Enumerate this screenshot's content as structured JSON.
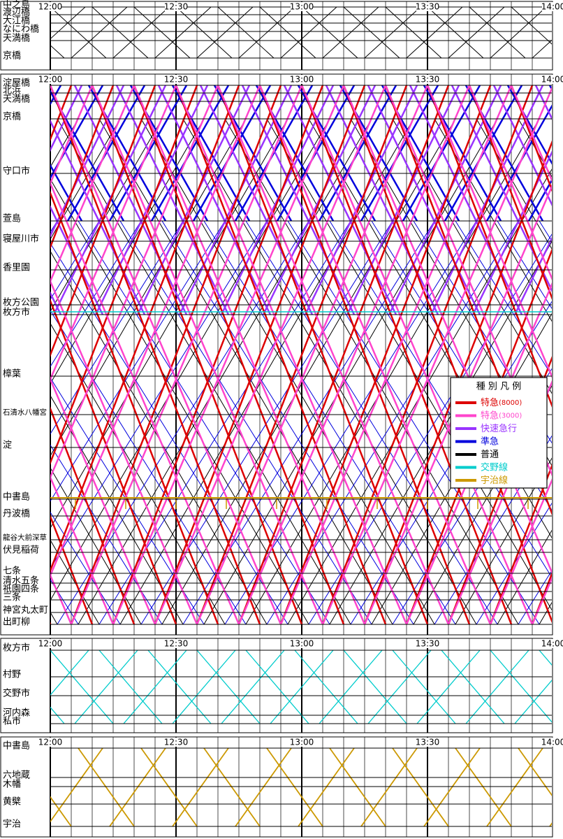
{
  "panels": [
    {
      "time_labels": [
        "12:00",
        "12:30",
        "13:00",
        "13:30",
        "14:00"
      ],
      "stations": [
        "中之島",
        "渡辺橋",
        "大江橋",
        "なにわ橋",
        "天満橋",
        "京橋"
      ]
    },
    {
      "time_labels": [
        "12:00",
        "12:30",
        "13:00",
        "13:30",
        "14:00"
      ],
      "stations": [
        "淀屋橋",
        "北浜",
        "天満橋",
        "京橋",
        "守口市",
        "萱島",
        "寝屋川市",
        "香里園",
        "枚方公園",
        "枚方市",
        "樟葉",
        "石清水八幡宮",
        "淀",
        "中書島",
        "丹波橋",
        "龍谷大前深草",
        "伏見稲荷",
        "七条",
        "清水五条",
        "祇園四条",
        "三条",
        "神宮丸太町",
        "出町柳"
      ]
    },
    {
      "time_labels": [
        "12:00",
        "12:30",
        "13:00",
        "13:30",
        "14:00"
      ],
      "stations": [
        "枚方市",
        "村野",
        "交野市",
        "河内森",
        "私市"
      ]
    },
    {
      "time_labels": [
        "12:00",
        "12:30",
        "13:00",
        "13:30",
        "14:00"
      ],
      "stations": [
        "中書島",
        "六地蔵",
        "木幡",
        "黄檗",
        "宇治"
      ]
    }
  ],
  "legend": {
    "title": "種 別 凡 例",
    "items": [
      {
        "label": "特急",
        "note": "(8000)",
        "color": "#dd0000"
      },
      {
        "label": "特急",
        "note": "(3000)",
        "color": "#ff44cc"
      },
      {
        "label": "快速急行",
        "color": "#9933ff"
      },
      {
        "label": "準急",
        "color": "#0000dd"
      },
      {
        "label": "普通",
        "color": "#000000"
      },
      {
        "label": "交野線",
        "color": "#00cccc"
      },
      {
        "label": "宇治線",
        "color": "#cc9900"
      }
    ]
  }
}
